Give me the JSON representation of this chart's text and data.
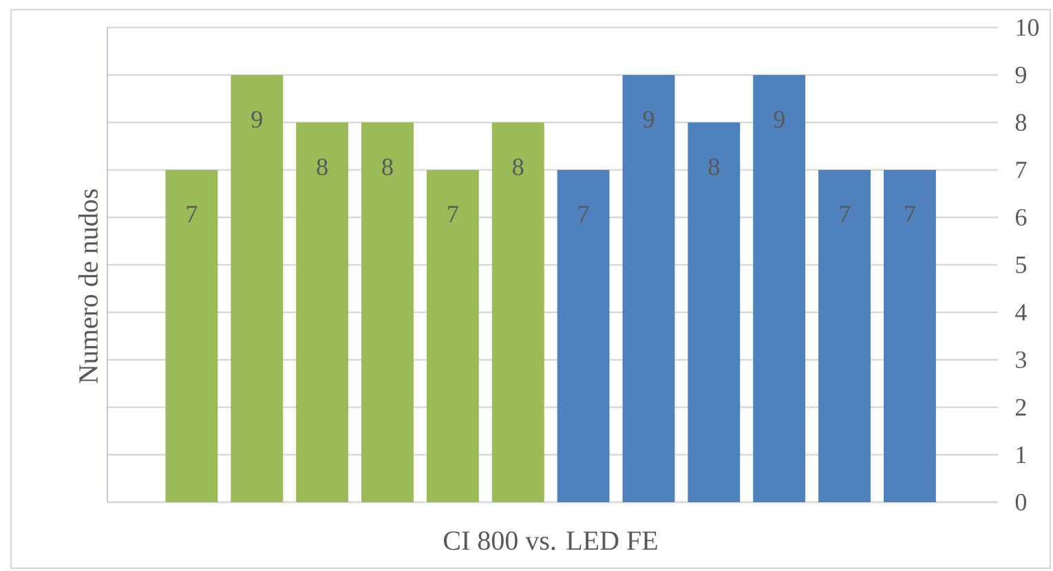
{
  "chart_data": {
    "type": "bar",
    "ylabel": "Numero de nudos",
    "xlabel": "CI 800 vs. LED FE",
    "categories": [
      null,
      null,
      null,
      null,
      null,
      null,
      null,
      null,
      null,
      null,
      null,
      null
    ],
    "values": [
      7,
      9,
      8,
      8,
      7,
      8,
      7,
      9,
      8,
      9,
      7,
      7
    ],
    "colors": [
      "#9bbb59",
      "#9bbb59",
      "#9bbb59",
      "#9bbb59",
      "#9bbb59",
      "#9bbb59",
      "#4f81bd",
      "#4f81bd",
      "#4f81bd",
      "#4f81bd",
      "#4f81bd",
      "#4f81bd"
    ],
    "ylim": [
      0,
      10
    ],
    "yticks": [
      0,
      1,
      2,
      3,
      4,
      5,
      6,
      7,
      8,
      9,
      10
    ],
    "grid": "y",
    "data_labels": true
  }
}
